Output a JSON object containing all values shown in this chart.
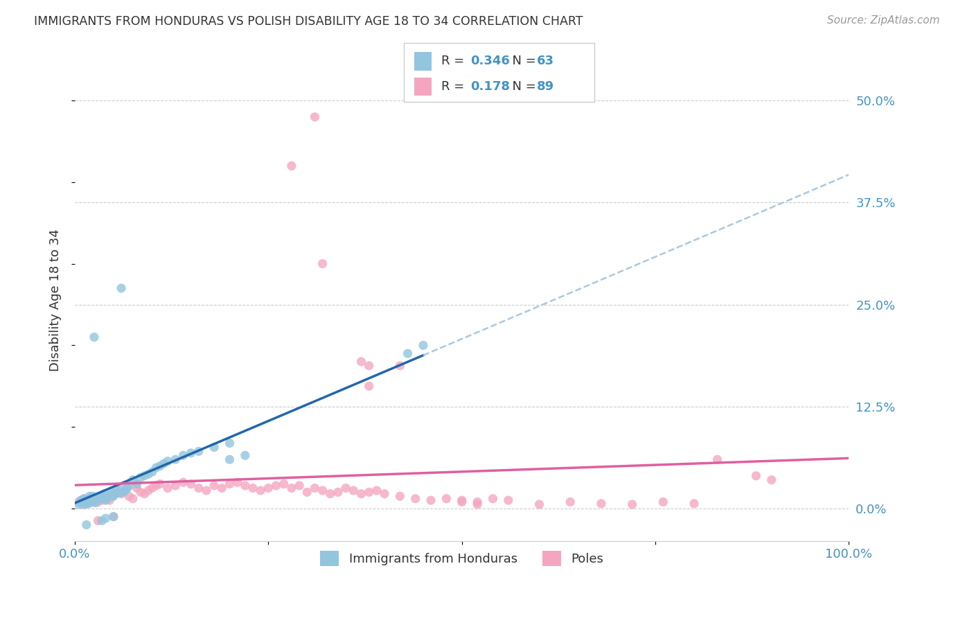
{
  "title": "IMMIGRANTS FROM HONDURAS VS POLISH DISABILITY AGE 18 TO 34 CORRELATION CHART",
  "source": "Source: ZipAtlas.com",
  "ylabel": "Disability Age 18 to 34",
  "legend_label1": "Immigrants from Honduras",
  "legend_label2": "Poles",
  "R1": "0.346",
  "N1": "63",
  "R2": "0.178",
  "N2": "89",
  "color_blue": "#92c5de",
  "color_pink": "#f4a6c0",
  "color_blue_text": "#4393c3",
  "color_pink_text": "#d6417b",
  "color_trendline_blue": "#2166ac",
  "color_trendline_pink": "#e05fa0",
  "color_dashed": "#aac8e0",
  "background_color": "#ffffff",
  "grid_color": "#cccccc",
  "title_color": "#333333",
  "source_color": "#999999",
  "n_blue": 63,
  "n_pink": 89,
  "xlim": [
    0.0,
    1.0
  ],
  "ylim": [
    -0.04,
    0.55
  ],
  "yticks": [
    0.0,
    0.125,
    0.25,
    0.375,
    0.5
  ],
  "ytick_labels": [
    "0.0%",
    "12.5%",
    "25.0%",
    "37.5%",
    "50.0%"
  ],
  "xticks": [
    0.0,
    0.25,
    0.5,
    0.75,
    1.0
  ],
  "xtick_labels": [
    "0.0%",
    "",
    "",
    "",
    "100.0%"
  ],
  "blue_x": [
    0.005,
    0.008,
    0.01,
    0.012,
    0.013,
    0.015,
    0.016,
    0.017,
    0.018,
    0.019,
    0.02,
    0.021,
    0.022,
    0.023,
    0.024,
    0.025,
    0.026,
    0.027,
    0.028,
    0.03,
    0.031,
    0.033,
    0.035,
    0.038,
    0.04,
    0.042,
    0.045,
    0.048,
    0.05,
    0.052,
    0.055,
    0.058,
    0.06,
    0.063,
    0.065,
    0.068,
    0.07,
    0.075,
    0.08,
    0.085,
    0.09,
    0.095,
    0.1,
    0.105,
    0.11,
    0.115,
    0.12,
    0.13,
    0.14,
    0.15,
    0.16,
    0.18,
    0.2,
    0.06,
    0.43,
    0.45,
    0.2,
    0.22,
    0.05,
    0.035,
    0.04,
    0.025,
    0.015
  ],
  "blue_y": [
    0.005,
    0.01,
    0.008,
    0.012,
    0.005,
    0.007,
    0.01,
    0.008,
    0.006,
    0.015,
    0.012,
    0.01,
    0.008,
    0.015,
    0.01,
    0.012,
    0.009,
    0.007,
    0.011,
    0.014,
    0.013,
    0.015,
    0.012,
    0.018,
    0.01,
    0.013,
    0.016,
    0.02,
    0.015,
    0.018,
    0.022,
    0.019,
    0.025,
    0.02,
    0.022,
    0.025,
    0.028,
    0.035,
    0.03,
    0.038,
    0.04,
    0.042,
    0.045,
    0.05,
    0.052,
    0.055,
    0.058,
    0.06,
    0.065,
    0.068,
    0.07,
    0.075,
    0.08,
    0.27,
    0.19,
    0.2,
    0.06,
    0.065,
    -0.01,
    -0.015,
    -0.012,
    0.21,
    -0.02
  ],
  "pink_x": [
    0.005,
    0.008,
    0.01,
    0.012,
    0.015,
    0.017,
    0.019,
    0.02,
    0.022,
    0.025,
    0.028,
    0.03,
    0.032,
    0.035,
    0.038,
    0.04,
    0.042,
    0.045,
    0.048,
    0.05,
    0.055,
    0.06,
    0.065,
    0.07,
    0.075,
    0.08,
    0.085,
    0.09,
    0.095,
    0.1,
    0.105,
    0.11,
    0.12,
    0.13,
    0.14,
    0.15,
    0.16,
    0.17,
    0.18,
    0.19,
    0.2,
    0.21,
    0.22,
    0.23,
    0.24,
    0.25,
    0.26,
    0.27,
    0.28,
    0.29,
    0.3,
    0.31,
    0.32,
    0.33,
    0.34,
    0.35,
    0.36,
    0.37,
    0.38,
    0.39,
    0.4,
    0.42,
    0.44,
    0.46,
    0.48,
    0.5,
    0.52,
    0.54,
    0.56,
    0.6,
    0.64,
    0.68,
    0.72,
    0.76,
    0.8,
    0.37,
    0.38,
    0.38,
    0.32,
    0.42,
    0.31,
    0.28,
    0.83,
    0.88,
    0.5,
    0.52,
    0.05,
    0.03,
    0.9
  ],
  "pink_y": [
    0.008,
    0.01,
    0.005,
    0.012,
    0.006,
    0.009,
    0.008,
    0.01,
    0.012,
    0.008,
    0.01,
    0.008,
    0.012,
    0.01,
    0.014,
    0.015,
    0.012,
    0.01,
    0.015,
    0.018,
    0.02,
    0.018,
    0.022,
    0.015,
    0.012,
    0.025,
    0.02,
    0.018,
    0.022,
    0.025,
    0.028,
    0.03,
    0.025,
    0.028,
    0.032,
    0.03,
    0.025,
    0.022,
    0.028,
    0.025,
    0.03,
    0.032,
    0.028,
    0.025,
    0.022,
    0.025,
    0.028,
    0.03,
    0.025,
    0.028,
    0.02,
    0.025,
    0.022,
    0.018,
    0.02,
    0.025,
    0.022,
    0.018,
    0.02,
    0.022,
    0.018,
    0.015,
    0.012,
    0.01,
    0.012,
    0.01,
    0.008,
    0.012,
    0.01,
    0.005,
    0.008,
    0.006,
    0.005,
    0.008,
    0.006,
    0.18,
    0.175,
    0.15,
    0.3,
    0.175,
    0.48,
    0.42,
    0.06,
    0.04,
    0.008,
    0.005,
    -0.01,
    -0.015,
    0.035
  ]
}
